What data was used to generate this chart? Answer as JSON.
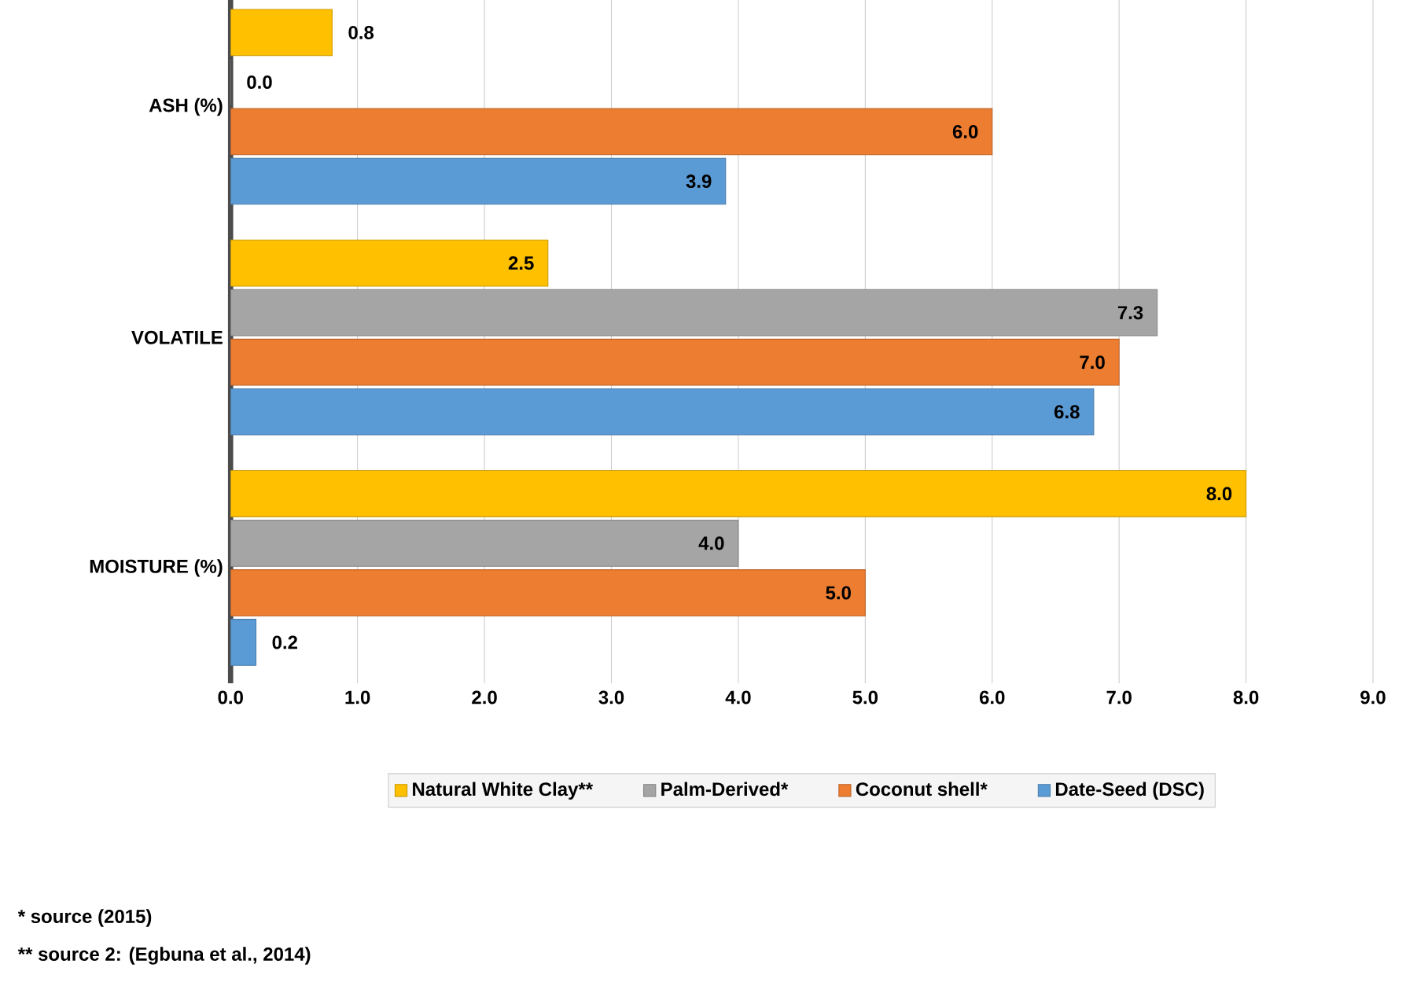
{
  "chart_data": {
    "type": "bar",
    "orientation": "horizontal",
    "categories": [
      "ASH (%)",
      "VOLATILE",
      "MOISTURE (%)"
    ],
    "series": [
      {
        "name": "Natural White Clay**",
        "color": "#ffc000",
        "values": [
          0.8,
          2.5,
          8.0
        ],
        "value_labels": [
          "0.8",
          "2.5",
          "8.0"
        ]
      },
      {
        "name": "Palm-Derived*",
        "color": "#a5a5a5",
        "values": [
          0.0,
          7.3,
          4.0
        ],
        "value_labels": [
          "0.0",
          "7.3",
          "4.0"
        ]
      },
      {
        "name": "Coconut shell*",
        "color": "#ed7d31",
        "values": [
          6.0,
          7.0,
          5.0
        ],
        "value_labels": [
          "6.0",
          "7.0",
          "5.0"
        ]
      },
      {
        "name": "Date-Seed (DSC)",
        "color": "#5b9bd5",
        "values": [
          3.9,
          6.8,
          0.2
        ],
        "value_labels": [
          "3.9",
          "6.8",
          "0.2"
        ]
      }
    ],
    "xlim": [
      0,
      9
    ],
    "xticks": [
      {
        "value": 0,
        "label": "0.0"
      },
      {
        "value": 1,
        "label": "1.0"
      },
      {
        "value": 2,
        "label": "2.0"
      },
      {
        "value": 3,
        "label": "3.0"
      },
      {
        "value": 4,
        "label": "4.0"
      },
      {
        "value": 5,
        "label": "5.0"
      },
      {
        "value": 6,
        "label": "6.0"
      },
      {
        "value": 7,
        "label": "7.0"
      },
      {
        "value": 8,
        "label": "8.0"
      },
      {
        "value": 9,
        "label": "9.0"
      }
    ],
    "grid": "x",
    "legend": "bottom",
    "annotations": [
      "*  source (2015)",
      "** source 2: (Egbuna et al., 2014)"
    ]
  }
}
